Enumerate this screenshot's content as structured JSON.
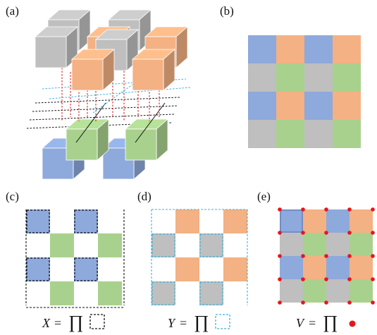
{
  "panels": {
    "a": {
      "label": "(a)"
    },
    "b": {
      "label": "(b)"
    },
    "c": {
      "label": "(c)",
      "equation": {
        "variable": "X",
        "equals": "=",
        "product": "∏",
        "symbol": "dashed-black-square"
      }
    },
    "d": {
      "label": "(d)",
      "equation": {
        "variable": "Y",
        "equals": "=",
        "product": "∏",
        "symbol": "dashed-cyan-square"
      }
    },
    "e": {
      "label": "(e)",
      "equation": {
        "variable": "V",
        "equals": "=",
        "product": "∏",
        "symbol": "red-dot"
      }
    }
  },
  "colors": {
    "blue": "#8ea9db",
    "orange": "#f4b183",
    "gray": "#bfbfbf",
    "green": "#a9d18e",
    "vertex_dot": "#e8151b",
    "cyan_dash": "#3fb3dc",
    "red_dash": "#d01010"
  },
  "lattice_pattern": [
    [
      "blue",
      "orange",
      "blue",
      "orange"
    ],
    [
      "gray",
      "green",
      "gray",
      "green"
    ],
    [
      "blue",
      "orange",
      "blue",
      "orange"
    ],
    [
      "gray",
      "green",
      "gray",
      "green"
    ]
  ]
}
